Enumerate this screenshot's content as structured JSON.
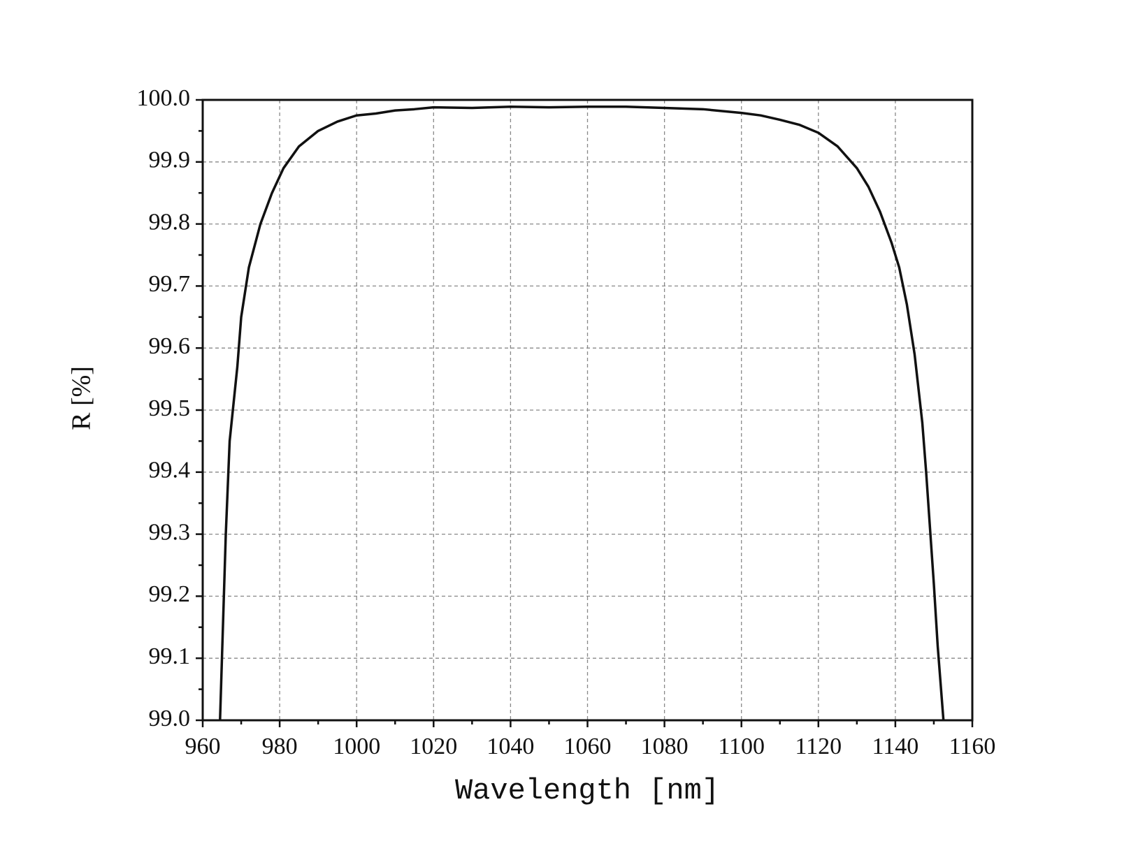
{
  "chart_data": {
    "type": "line",
    "xlabel": "Wavelength [nm]",
    "ylabel": "R [%]",
    "xlim": [
      960,
      1160
    ],
    "xticks": [
      960,
      980,
      1000,
      1020,
      1040,
      1060,
      1080,
      1100,
      1120,
      1140,
      1160
    ],
    "ylim": [
      99.0,
      100.0
    ],
    "yticks": [
      {
        "value": 99.0,
        "label": "99.0"
      },
      99.1,
      99.2,
      99.3,
      99.4,
      99.5,
      99.6,
      99.7,
      99.8,
      99.9,
      {
        "value": 100.0,
        "label": "100.0"
      }
    ],
    "grid": true,
    "series": [
      {
        "color": "#111111",
        "x": [
          964.5,
          966,
          967,
          969,
          970,
          972,
          975,
          978,
          981,
          985,
          990,
          995,
          1000,
          1005,
          1010,
          1015,
          1020,
          1030,
          1040,
          1050,
          1060,
          1070,
          1080,
          1090,
          1100,
          1105,
          1110,
          1115,
          1120,
          1125,
          1130,
          1133,
          1136,
          1139,
          1141,
          1143,
          1145,
          1147,
          1148,
          1149,
          1150,
          1151,
          1152,
          1152.5
        ],
        "values": [
          99.0,
          99.3,
          99.45,
          99.57,
          99.65,
          99.73,
          99.8,
          99.85,
          99.89,
          99.925,
          99.95,
          99.965,
          99.975,
          99.978,
          99.983,
          99.985,
          99.988,
          99.987,
          99.989,
          99.988,
          99.989,
          99.989,
          99.987,
          99.985,
          99.979,
          99.975,
          99.968,
          99.96,
          99.947,
          99.925,
          99.89,
          99.86,
          99.82,
          99.77,
          99.73,
          99.67,
          99.59,
          99.48,
          99.4,
          99.31,
          99.22,
          99.12,
          99.04,
          99.0
        ]
      }
    ]
  }
}
